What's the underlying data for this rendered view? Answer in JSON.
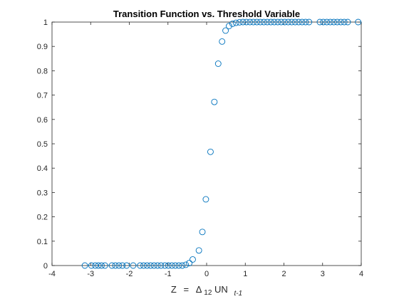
{
  "chart_data": {
    "type": "scatter",
    "title": "Transition Function vs. Threshold Variable",
    "xlabel": {
      "variable": "Z",
      "equals": "=",
      "delta": "Δ",
      "delta_sub": "12",
      "name": "UN",
      "time_sub": "t-1"
    },
    "ylabel": "",
    "xlim": [
      -4,
      4
    ],
    "ylim": [
      0,
      1
    ],
    "x_ticks": [
      -4,
      -3,
      -2,
      -1,
      0,
      1,
      2,
      3,
      4
    ],
    "y_ticks": [
      0,
      0.1,
      0.2,
      0.3,
      0.4,
      0.5,
      0.6,
      0.7,
      0.8,
      0.9,
      1
    ],
    "grid": false,
    "marker": "open-circle",
    "series_color": "#0072BD",
    "points": [
      {
        "x": -3.15,
        "y": 0
      },
      {
        "x": -2.98,
        "y": 0
      },
      {
        "x": -2.88,
        "y": 0
      },
      {
        "x": -2.8,
        "y": 0
      },
      {
        "x": -2.72,
        "y": 0
      },
      {
        "x": -2.63,
        "y": 0
      },
      {
        "x": -2.45,
        "y": 0
      },
      {
        "x": -2.36,
        "y": 0
      },
      {
        "x": -2.27,
        "y": 0
      },
      {
        "x": -2.18,
        "y": 0
      },
      {
        "x": -2.07,
        "y": 0
      },
      {
        "x": -1.9,
        "y": 0
      },
      {
        "x": -1.72,
        "y": 0
      },
      {
        "x": -1.63,
        "y": 0
      },
      {
        "x": -1.54,
        "y": 0
      },
      {
        "x": -1.45,
        "y": 0
      },
      {
        "x": -1.36,
        "y": 0
      },
      {
        "x": -1.27,
        "y": 0
      },
      {
        "x": -1.18,
        "y": 0
      },
      {
        "x": -1.08,
        "y": 0
      },
      {
        "x": -0.99,
        "y": 0
      },
      {
        "x": -0.9,
        "y": 0
      },
      {
        "x": -0.81,
        "y": 0
      },
      {
        "x": -0.72,
        "y": 0
      },
      {
        "x": -0.63,
        "y": 0
      },
      {
        "x": -0.54,
        "y": 0.003
      },
      {
        "x": -0.45,
        "y": 0.01
      },
      {
        "x": -0.36,
        "y": 0.025
      },
      {
        "x": -0.2,
        "y": 0.062
      },
      {
        "x": -0.11,
        "y": 0.138
      },
      {
        "x": -0.02,
        "y": 0.272
      },
      {
        "x": 0.1,
        "y": 0.467
      },
      {
        "x": 0.2,
        "y": 0.672
      },
      {
        "x": 0.3,
        "y": 0.829
      },
      {
        "x": 0.4,
        "y": 0.92
      },
      {
        "x": 0.49,
        "y": 0.965
      },
      {
        "x": 0.58,
        "y": 0.984
      },
      {
        "x": 0.67,
        "y": 0.993
      },
      {
        "x": 0.76,
        "y": 0.997
      },
      {
        "x": 0.85,
        "y": 0.999
      },
      {
        "x": 0.94,
        "y": 1
      },
      {
        "x": 1.03,
        "y": 1
      },
      {
        "x": 1.12,
        "y": 1
      },
      {
        "x": 1.21,
        "y": 1
      },
      {
        "x": 1.3,
        "y": 1
      },
      {
        "x": 1.39,
        "y": 1
      },
      {
        "x": 1.48,
        "y": 1
      },
      {
        "x": 1.57,
        "y": 1
      },
      {
        "x": 1.66,
        "y": 1
      },
      {
        "x": 1.75,
        "y": 1
      },
      {
        "x": 1.84,
        "y": 1
      },
      {
        "x": 1.93,
        "y": 1
      },
      {
        "x": 2.02,
        "y": 1
      },
      {
        "x": 2.11,
        "y": 1
      },
      {
        "x": 2.2,
        "y": 1
      },
      {
        "x": 2.29,
        "y": 1
      },
      {
        "x": 2.38,
        "y": 1
      },
      {
        "x": 2.47,
        "y": 1
      },
      {
        "x": 2.56,
        "y": 1
      },
      {
        "x": 2.65,
        "y": 1
      },
      {
        "x": 2.93,
        "y": 1
      },
      {
        "x": 3.02,
        "y": 1
      },
      {
        "x": 3.11,
        "y": 1
      },
      {
        "x": 3.2,
        "y": 1
      },
      {
        "x": 3.29,
        "y": 1
      },
      {
        "x": 3.38,
        "y": 1
      },
      {
        "x": 3.47,
        "y": 1
      },
      {
        "x": 3.56,
        "y": 1
      },
      {
        "x": 3.65,
        "y": 1
      },
      {
        "x": 3.92,
        "y": 1
      }
    ]
  }
}
